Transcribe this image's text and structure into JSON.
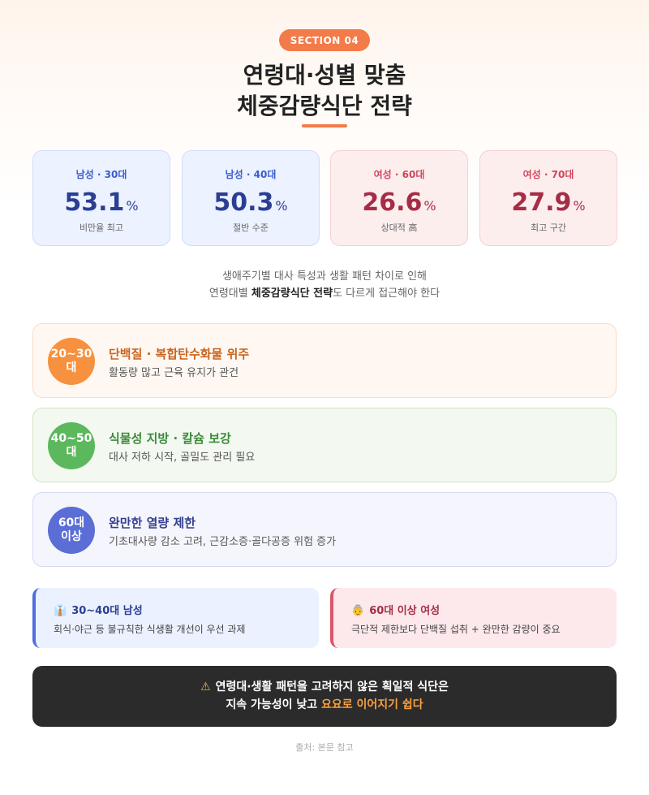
{
  "header": {
    "badge": "SECTION 04",
    "title_line1": "연령대·성별 맞춤",
    "title_line2": "체중감량식단 전략",
    "accent": "#f37b4a"
  },
  "stats": [
    {
      "label": "남성 · 30대",
      "value": "53.1",
      "unit": "%",
      "sub": "비만율 최고",
      "group": "male"
    },
    {
      "label": "남성 · 40대",
      "value": "50.3",
      "unit": "%",
      "sub": "절반 수준",
      "group": "male"
    },
    {
      "label": "여성 · 60대",
      "value": "26.6",
      "unit": "%",
      "sub": "상대적 高",
      "group": "female"
    },
    {
      "label": "여성 · 70대",
      "value": "27.9",
      "unit": "%",
      "sub": "최고 구간",
      "group": "female"
    }
  ],
  "description": {
    "line1": "생애주기별 대사 특성과 생활 패턴 차이로 인해",
    "line2_pre": "연령대별 ",
    "line2_bold": "체중감량식단 전략",
    "line2_post": "도 다르게 접근해야 한다"
  },
  "strategies": [
    {
      "age": "20~30대",
      "title": "단백질 · 복합탄수화물 위주",
      "sub": "활동량 많고 근육 유지가 관건",
      "color": "#f7913f"
    },
    {
      "age": "40~50대",
      "title": "식물성 지방 · 칼슘 보강",
      "sub": "대사 저하 시작, 골밀도 관리 필요",
      "color": "#5cb85c"
    },
    {
      "age_line1": "60대",
      "age_line2": "이상",
      "title": "완만한 열량 제한",
      "sub": "기초대사량 감소 고려, 근감소증·골다공증 위험 증가",
      "color": "#5a6ed6"
    }
  ],
  "notes": {
    "male": {
      "icon": "man-office-icon",
      "title": "30~40대 남성",
      "text": "회식·야근 등 불규칙한 식생활 개선이 우선 과제"
    },
    "female": {
      "icon": "older-woman-icon",
      "title": "60대 이상 여성",
      "text": "극단적 제한보다 단백질 섭취 + 완만한 감량이 중요"
    }
  },
  "warning": {
    "icon": "warning-icon",
    "line1": "연령대·생활 패턴을 고려하지 않은 획일적 식단은",
    "line2_pre": "지속 가능성이 낮고 ",
    "line2_highlight": "요요로 이어지기 쉽다"
  },
  "source": "출처: 본문 참고"
}
